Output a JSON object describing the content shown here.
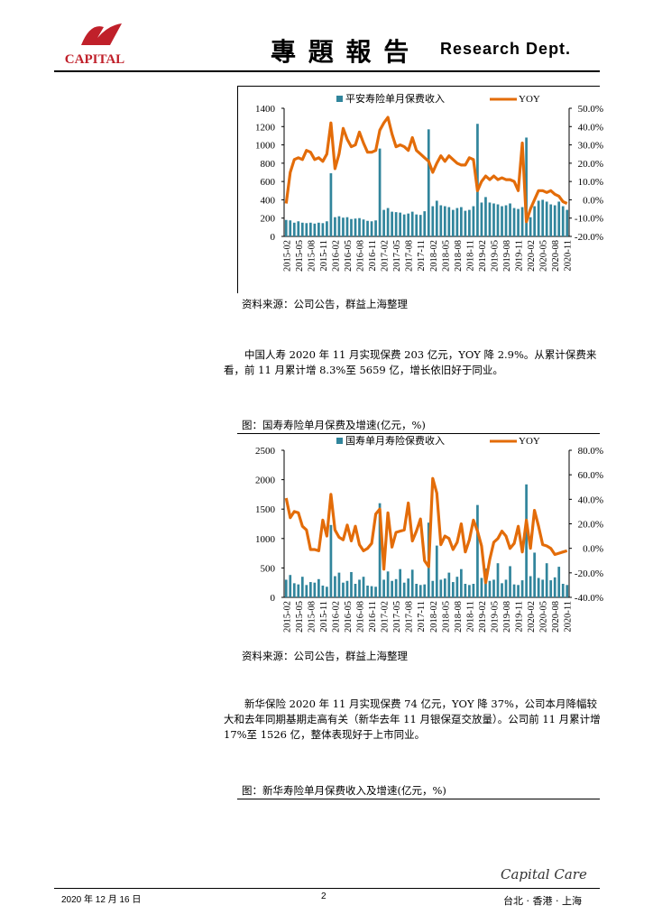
{
  "header": {
    "logo_text": "CAPITAL",
    "title": "專 題 報 告",
    "dept": "Research Dept."
  },
  "chart_data": [
    {
      "type": "bar_line",
      "categories": [
        "2015-02",
        null,
        null,
        "2015-05",
        null,
        null,
        "2015-08",
        null,
        null,
        "2015-11",
        null,
        null,
        "2016-02",
        null,
        null,
        "2016-05",
        null,
        null,
        "2016-08",
        null,
        null,
        "2016-11",
        null,
        null,
        "2017-02",
        null,
        null,
        "2017-05",
        null,
        null,
        "2017-08",
        null,
        null,
        "2017-11",
        null,
        null,
        "2018-02",
        null,
        null,
        "2018-05",
        null,
        null,
        "2018-08",
        null,
        null,
        "2018-11",
        null,
        null,
        "2019-02",
        null,
        null,
        "2019-05",
        null,
        null,
        "2019-08",
        null,
        null,
        "2019-11",
        null,
        null,
        "2020-02",
        null,
        null,
        "2020-05",
        null,
        null,
        "2020-08",
        null,
        null,
        "2020-11"
      ],
      "series": [
        {
          "name": "平安寿险单月保费收入",
          "color": "#31859c",
          "type": "bar",
          "values": [
            180,
            175,
            150,
            165,
            150,
            145,
            150,
            140,
            150,
            145,
            165,
            690,
            210,
            220,
            205,
            210,
            190,
            195,
            200,
            185,
            170,
            165,
            175,
            960,
            290,
            310,
            270,
            265,
            260,
            240,
            250,
            270,
            240,
            235,
            275,
            1170,
            330,
            390,
            340,
            330,
            320,
            290,
            310,
            320,
            280,
            290,
            330,
            1230,
            370,
            430,
            370,
            360,
            350,
            330,
            340,
            360,
            310,
            300,
            320,
            1080,
            210,
            330,
            390,
            400,
            380,
            350,
            340,
            380,
            330,
            290
          ]
        },
        {
          "name": "YOY",
          "color": "#e36c09",
          "type": "line",
          "axis": "y2",
          "values": [
            -2,
            15,
            22,
            23,
            22,
            27,
            26,
            22,
            23,
            21,
            25,
            42,
            17,
            25,
            39,
            33,
            29,
            30,
            37,
            31,
            26,
            26,
            27,
            38,
            42,
            45,
            36,
            29,
            30,
            29,
            27,
            34,
            27,
            25,
            23,
            21,
            15,
            20,
            24,
            21,
            24,
            22,
            20,
            19,
            19,
            23,
            22,
            5,
            10,
            13,
            11,
            13,
            11,
            12,
            11,
            11,
            10,
            5,
            31,
            -12,
            -5,
            0,
            5,
            5,
            4,
            5,
            3,
            2,
            -1,
            -2
          ]
        }
      ],
      "ylim": [
        0,
        1400
      ],
      "yticks": [
        0,
        200,
        400,
        600,
        800,
        1000,
        1200,
        1400
      ],
      "y2lim": [
        -20,
        50
      ],
      "y2ticks": [
        {
          "value": -20,
          "label": "-20.0%"
        },
        {
          "value": -10,
          "label": "-10.0%"
        },
        {
          "value": 0,
          "label": "0.0%"
        },
        {
          "value": 10,
          "label": "10.0%"
        },
        {
          "value": 20,
          "label": "20.0%"
        },
        {
          "value": 30,
          "label": "30.0%"
        },
        {
          "value": 40,
          "label": "40.0%"
        },
        {
          "value": 50,
          "label": "50.0%"
        }
      ],
      "source": "资料来源：公司公告，群益上海整理"
    },
    {
      "type": "bar_line",
      "title": "图：国寿寿险单月保费及增速(亿元，%)",
      "categories": [
        "2015-02",
        null,
        null,
        "2015-05",
        null,
        null,
        "2015-08",
        null,
        null,
        "2015-11",
        null,
        null,
        "2016-02",
        null,
        null,
        "2016-05",
        null,
        null,
        "2016-08",
        null,
        null,
        "2016-11",
        null,
        null,
        "2017-02",
        null,
        null,
        "2017-05",
        null,
        null,
        "2017-08",
        null,
        null,
        "2017-11",
        null,
        null,
        "2018-02",
        null,
        null,
        "2018-05",
        null,
        null,
        "2018-08",
        null,
        null,
        "2018-11",
        null,
        null,
        "2019-02",
        null,
        null,
        "2019-05",
        null,
        null,
        "2019-08",
        null,
        null,
        "2019-11",
        null,
        null,
        "2020-02",
        null,
        null,
        "2020-05",
        null,
        null,
        "2020-08",
        null,
        null,
        "2020-11"
      ],
      "series": [
        {
          "name": "国寿单月寿险保费收入",
          "color": "#31859c",
          "type": "bar",
          "values": [
            300,
            380,
            240,
            220,
            350,
            210,
            260,
            250,
            310,
            200,
            180,
            1230,
            360,
            420,
            250,
            280,
            430,
            230,
            300,
            350,
            200,
            190,
            180,
            1600,
            300,
            440,
            280,
            310,
            480,
            250,
            320,
            470,
            230,
            210,
            220,
            1270,
            280,
            880,
            300,
            320,
            420,
            260,
            350,
            480,
            230,
            210,
            230,
            1570,
            330,
            490,
            280,
            300,
            580,
            240,
            300,
            530,
            220,
            210,
            290,
            1920,
            360,
            760,
            330,
            300,
            580,
            290,
            340,
            520,
            230,
            210
          ]
        },
        {
          "name": "YOY",
          "color": "#e36c09",
          "type": "line",
          "axis": "y2",
          "values": [
            41,
            25,
            30,
            29,
            18,
            15,
            -1,
            -1,
            -2,
            23,
            10,
            44,
            15,
            9,
            7,
            19,
            6,
            18,
            3,
            -2,
            0,
            4,
            28,
            32,
            -17,
            29,
            1,
            13,
            14,
            15,
            37,
            6,
            14,
            24,
            -10,
            -15,
            57,
            45,
            3,
            10,
            8,
            -1,
            5,
            20,
            -3,
            7,
            23,
            14,
            2,
            -28,
            -9,
            5,
            8,
            14,
            10,
            0,
            4,
            18,
            -3,
            23,
            0,
            31,
            18,
            3,
            2,
            0,
            -5,
            -4,
            -3,
            -2
          ]
        }
      ],
      "ylim": [
        0,
        2500
      ],
      "yticks": [
        0,
        500,
        1000,
        1500,
        2000,
        2500
      ],
      "y2lim": [
        -40,
        80
      ],
      "y2ticks": [
        {
          "value": -40,
          "label": "-40.0%"
        },
        {
          "value": -20,
          "label": "-20.0%"
        },
        {
          "value": 0,
          "label": "0.0%"
        },
        {
          "value": 20,
          "label": "20.0%"
        },
        {
          "value": 40,
          "label": "40.0%"
        },
        {
          "value": 60,
          "label": "60.0%"
        },
        {
          "value": 80,
          "label": "80.0%"
        }
      ],
      "source": "资料来源：公司公告，群益上海整理"
    }
  ],
  "paragraphs": [
    "中国人寿 2020 年 11 月实现保费 203 亿元，YOY 降 2.9%。从累计保费来看，前 11 月累计增 8.3%至 5659 亿，增长依旧好于同业。",
    "新华保险 2020 年 11 月实现保费 74 亿元，YOY 降 37%，公司本月降幅较大和去年同期基期走高有关（新华去年 11 月银保趸交放量）。公司前 11 月累计增 17%至 1526 亿，整体表现好于上市同业。"
  ],
  "figure_title": "图：新华寿险单月保费收入及增速(亿元，%)",
  "footer": {
    "date": "2020 年 12 月 16 日",
    "page": "2",
    "brand": "Capital Care",
    "cities": "台北 · 香港 · 上海"
  }
}
